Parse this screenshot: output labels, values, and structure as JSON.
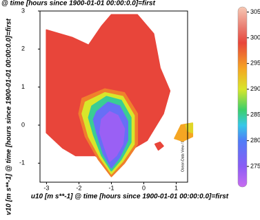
{
  "chart_data": {
    "type": "contour",
    "title": "@ time [hours since 1900-01-01 00:00:0.0]=first",
    "x_label": "u10 [m s**-1] @ time [hours since 1900-01-01 00:00:0.0]=first",
    "y_label": "v10 [m s**-1] @ time [hours since 1900-01-01 00:00:0.0]=first",
    "watermark": "Ocean Data View / DIVA",
    "xlim": [
      -3.2,
      1.35
    ],
    "xticks": [
      -3,
      -2,
      -1,
      0,
      1
    ],
    "ylim": [
      -1.5,
      3
    ],
    "yticks": [
      -1,
      0,
      1,
      2,
      3
    ],
    "clim": [
      271,
      306
    ],
    "cticks": [
      275,
      280,
      285,
      290,
      295,
      300,
      305
    ],
    "colormap": [
      {
        "value": 271,
        "color": "#c86cf0"
      },
      {
        "value": 275,
        "color": "#8a5cf5"
      },
      {
        "value": 280,
        "color": "#4f7cf7"
      },
      {
        "value": 283,
        "color": "#35c8e8"
      },
      {
        "value": 286,
        "color": "#3ccf6a"
      },
      {
        "value": 290,
        "color": "#d8e62a"
      },
      {
        "value": 294,
        "color": "#f5a623"
      },
      {
        "value": 299,
        "color": "#e8453a"
      },
      {
        "value": 302,
        "color": "#e97c70"
      },
      {
        "value": 306,
        "color": "#f7c8b4"
      }
    ],
    "regions": [
      {
        "value": 299,
        "points": [
          [
            -3,
            2.5
          ],
          [
            -2.2,
            2.3
          ],
          [
            -1.7,
            2.1
          ],
          [
            -1.3,
            2.6
          ],
          [
            -1.0,
            2.9
          ],
          [
            -0.2,
            2.9
          ],
          [
            0.3,
            2.4
          ],
          [
            0.5,
            1.5
          ],
          [
            0.8,
            0.9
          ],
          [
            0.6,
            0.3
          ],
          [
            0.1,
            -0.4
          ],
          [
            -0.3,
            -0.6
          ],
          [
            -0.6,
            -0.9
          ],
          [
            -0.9,
            -1.1
          ],
          [
            -1.5,
            -0.8
          ],
          [
            -2.1,
            -0.8
          ],
          [
            -2.5,
            -0.6
          ],
          [
            -3,
            -0.2
          ]
        ]
      },
      {
        "value": 296,
        "points": [
          [
            -1.9,
            0.7
          ],
          [
            -1.2,
            0.95
          ],
          [
            -0.6,
            0.85
          ],
          [
            -0.2,
            0.3
          ],
          [
            -0.2,
            -0.5
          ],
          [
            -0.6,
            -1.0
          ],
          [
            -1.0,
            -1.35
          ],
          [
            -1.4,
            -0.9
          ],
          [
            -1.8,
            -0.3
          ],
          [
            -2.0,
            0.3
          ]
        ]
      },
      {
        "value": 290,
        "points": [
          [
            -1.8,
            0.6
          ],
          [
            -1.2,
            0.85
          ],
          [
            -0.65,
            0.75
          ],
          [
            -0.3,
            0.25
          ],
          [
            -0.3,
            -0.5
          ],
          [
            -0.65,
            -0.95
          ],
          [
            -1.0,
            -1.28
          ],
          [
            -1.35,
            -0.85
          ],
          [
            -1.7,
            -0.3
          ],
          [
            -1.9,
            0.3
          ]
        ]
      },
      {
        "value": 285,
        "points": [
          [
            -1.6,
            0.5
          ],
          [
            -1.15,
            0.75
          ],
          [
            -0.7,
            0.65
          ],
          [
            -0.4,
            0.2
          ],
          [
            -0.4,
            -0.45
          ],
          [
            -0.7,
            -0.9
          ],
          [
            -1.0,
            -1.2
          ],
          [
            -1.3,
            -0.8
          ],
          [
            -1.55,
            -0.25
          ],
          [
            -1.7,
            0.2
          ]
        ]
      },
      {
        "value": 278,
        "points": [
          [
            -1.45,
            0.35
          ],
          [
            -1.1,
            0.6
          ],
          [
            -0.75,
            0.5
          ],
          [
            -0.5,
            0.1
          ],
          [
            -0.5,
            -0.4
          ],
          [
            -0.75,
            -0.85
          ],
          [
            -1.0,
            -1.12
          ],
          [
            -1.25,
            -0.75
          ],
          [
            -1.45,
            -0.2
          ],
          [
            -1.55,
            0.15
          ]
        ]
      },
      {
        "value": 274,
        "points": [
          [
            -1.3,
            0.15
          ],
          [
            -1.05,
            0.35
          ],
          [
            -0.8,
            0.25
          ],
          [
            -0.6,
            -0.1
          ],
          [
            -0.65,
            -0.5
          ],
          [
            -0.85,
            -0.8
          ],
          [
            -1.05,
            -0.95
          ],
          [
            -1.2,
            -0.6
          ],
          [
            -1.35,
            -0.2
          ]
        ]
      },
      {
        "value": 294,
        "points": [
          [
            0.95,
            -0.35
          ],
          [
            1.15,
            0.0
          ],
          [
            1.5,
            0.05
          ],
          [
            1.5,
            -0.3
          ],
          [
            1.2,
            -0.42
          ]
        ]
      },
      {
        "value": 291,
        "points": [
          [
            1.3,
            0.0
          ],
          [
            1.5,
            0.05
          ],
          [
            1.5,
            -0.2
          ],
          [
            1.35,
            -0.15
          ]
        ]
      },
      {
        "value": 299,
        "points": [
          [
            0.35,
            -0.5
          ],
          [
            0.5,
            -0.45
          ],
          [
            0.6,
            -0.55
          ],
          [
            0.45,
            -0.65
          ]
        ]
      }
    ]
  }
}
